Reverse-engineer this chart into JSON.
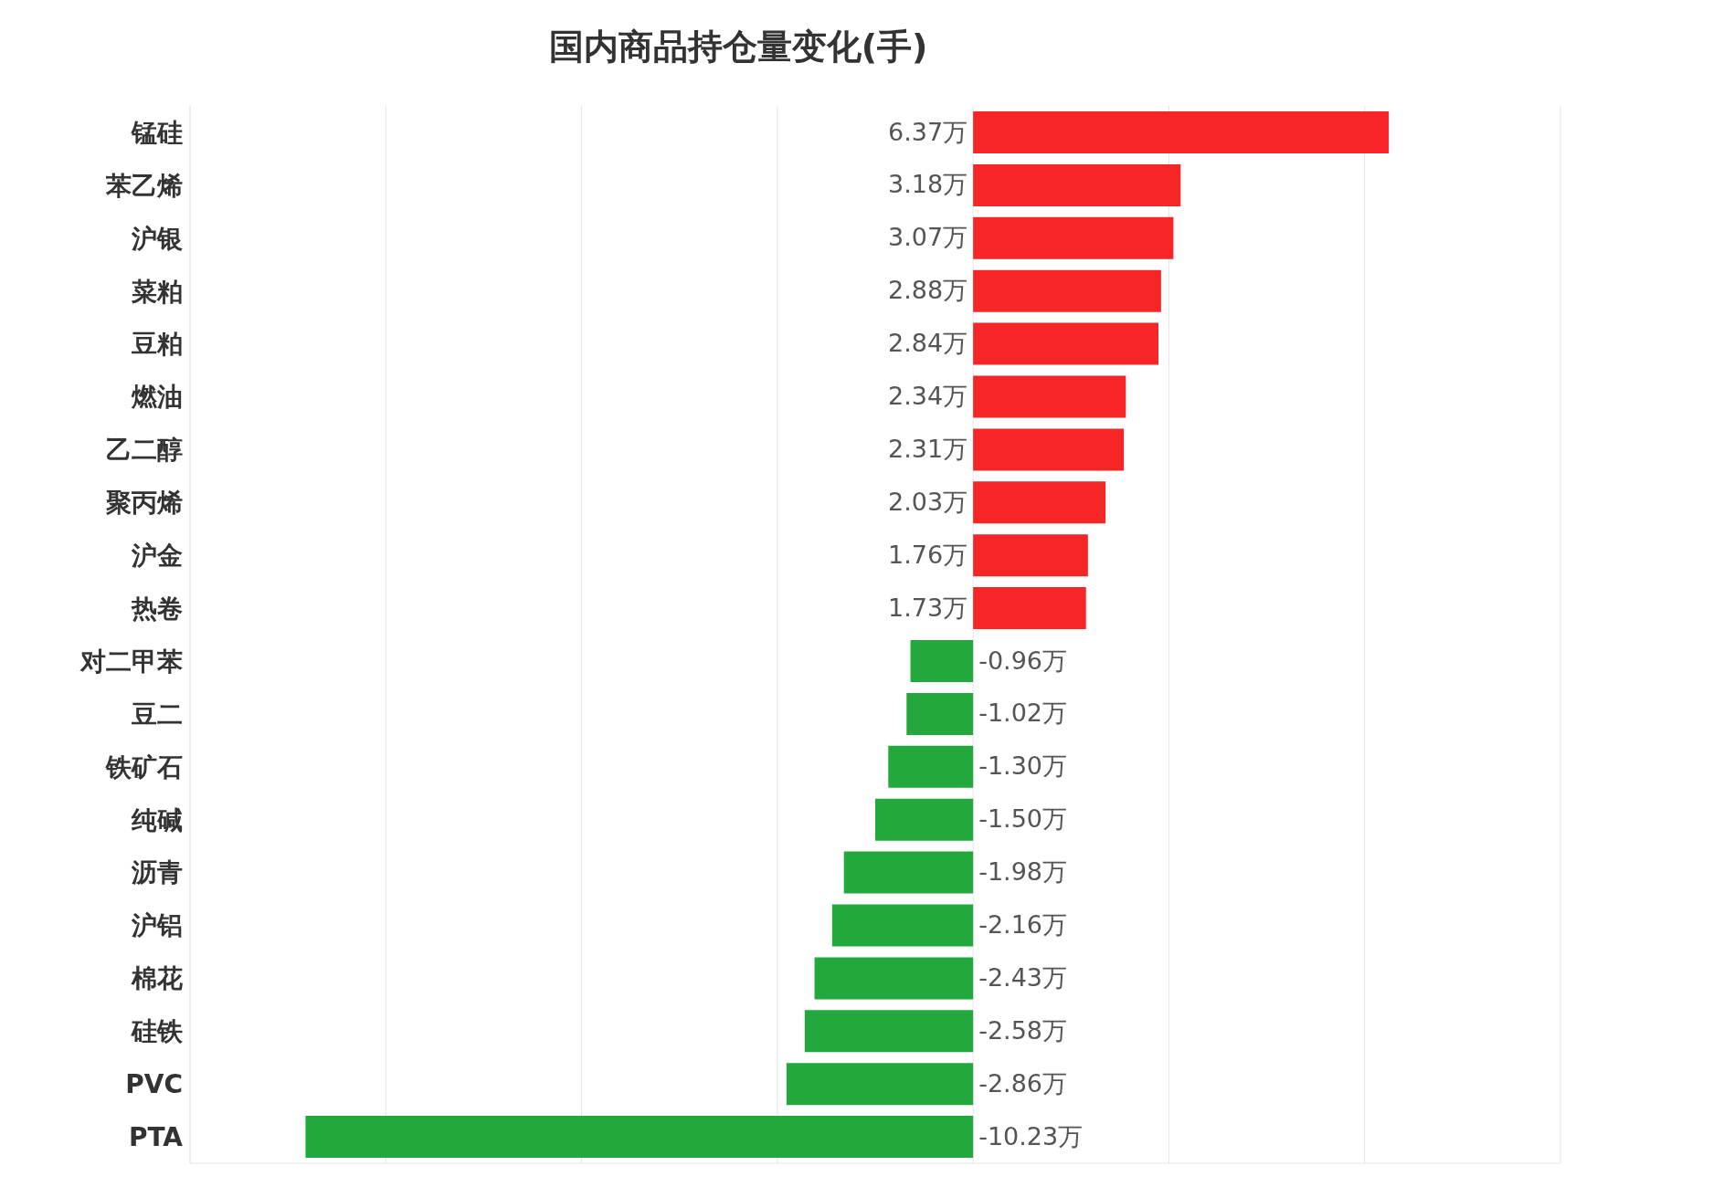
{
  "chart_data": {
    "type": "bar",
    "orientation": "horizontal",
    "title": "国内商品持仓量变化(手)",
    "categories": [
      "锰硅",
      "苯乙烯",
      "沪银",
      "菜粕",
      "豆粕",
      "燃油",
      "乙二醇",
      "聚丙烯",
      "沪金",
      "热卷",
      "对二甲苯",
      "豆二",
      "铁矿石",
      "纯碱",
      "沥青",
      "沪铝",
      "棉花",
      "硅铁",
      "PVC",
      "PTA"
    ],
    "values": [
      6.37,
      3.18,
      3.07,
      2.88,
      2.84,
      2.34,
      2.31,
      2.03,
      1.76,
      1.73,
      -0.96,
      -1.02,
      -1.3,
      -1.5,
      -1.98,
      -2.16,
      -2.43,
      -2.58,
      -2.86,
      -10.23
    ],
    "value_labels": [
      "6.37万",
      "3.18万",
      "3.07万",
      "2.88万",
      "2.84万",
      "2.34万",
      "2.31万",
      "2.03万",
      "1.76万",
      "1.73万",
      "-0.96万",
      "-1.02万",
      "-1.30万",
      "-1.50万",
      "-1.98万",
      "-2.16万",
      "-2.43万",
      "-2.58万",
      "-2.86万",
      "-10.23万"
    ],
    "colors": [
      "#f72626",
      "#f72626",
      "#f72626",
      "#f72626",
      "#f72626",
      "#f72626",
      "#f72626",
      "#f72626",
      "#f72626",
      "#f72626",
      "#22a83c",
      "#22a83c",
      "#22a83c",
      "#22a83c",
      "#22a83c",
      "#22a83c",
      "#22a83c",
      "#22a83c",
      "#22a83c",
      "#22a83c"
    ],
    "grid": "x",
    "tick_labels": "y",
    "legend": false
  }
}
